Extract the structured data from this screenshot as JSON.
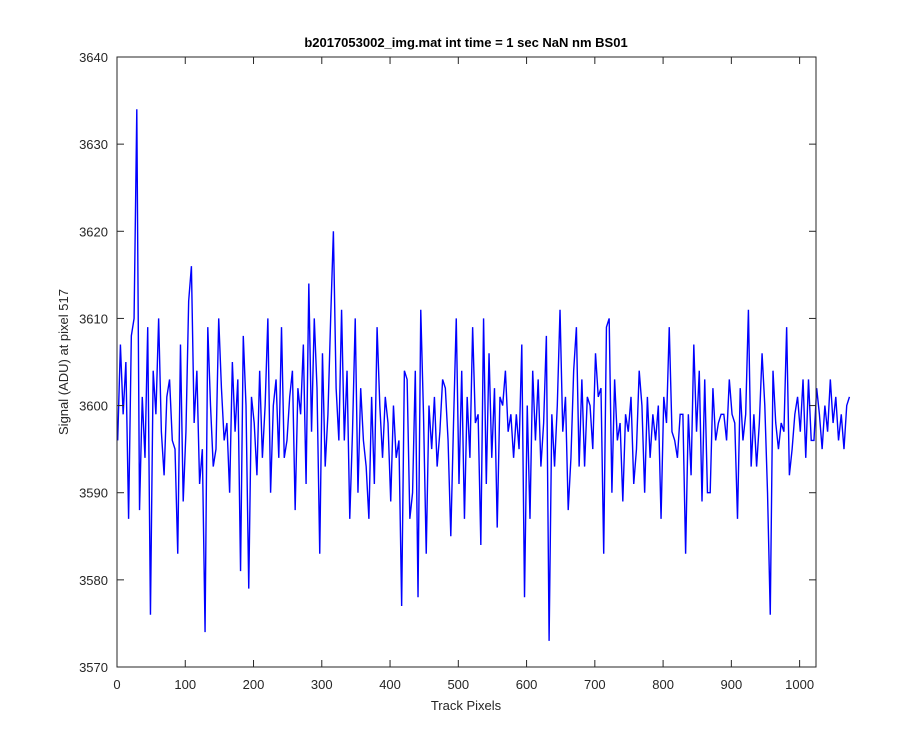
{
  "chart_data": {
    "type": "line",
    "title": "b2017053002_img.mat int time = 1 sec  NaN nm BS01",
    "xlabel": "Track Pixels",
    "ylabel": "Signal (ADU) at pixel 517",
    "xlim": [
      0,
      1024
    ],
    "ylim": [
      3570,
      3640
    ],
    "xticks": [
      0,
      100,
      200,
      300,
      400,
      500,
      600,
      700,
      800,
      900,
      1000
    ],
    "yticks": [
      3570,
      3580,
      3590,
      3600,
      3610,
      3620,
      3630,
      3640
    ],
    "grid": false,
    "line_color": "#0000ff",
    "series": [
      {
        "name": "",
        "x_start": 1,
        "x_step": 4,
        "values": [
          3596,
          3607,
          3599,
          3605,
          3587,
          3608,
          3610,
          3634,
          3588,
          3601,
          3594,
          3609,
          3576,
          3604,
          3599,
          3610,
          3597,
          3592,
          3601,
          3603,
          3596,
          3595,
          3583,
          3607,
          3589,
          3597,
          3612,
          3616,
          3598,
          3604,
          3591,
          3595,
          3574,
          3609,
          3600,
          3593,
          3595,
          3610,
          3602,
          3596,
          3598,
          3590,
          3605,
          3597,
          3603,
          3581,
          3608,
          3600,
          3579,
          3601,
          3598,
          3592,
          3604,
          3594,
          3600,
          3610,
          3590,
          3600,
          3603,
          3594,
          3609,
          3594,
          3596,
          3601,
          3604,
          3588,
          3602,
          3599,
          3607,
          3591,
          3614,
          3597,
          3610,
          3602,
          3583,
          3606,
          3593,
          3599,
          3610,
          3620,
          3602,
          3596,
          3611,
          3596,
          3604,
          3587,
          3597,
          3610,
          3590,
          3602,
          3596,
          3593,
          3587,
          3601,
          3591,
          3609,
          3600,
          3594,
          3601,
          3598,
          3589,
          3600,
          3594,
          3596,
          3577,
          3604,
          3603,
          3587,
          3590,
          3604,
          3578,
          3611,
          3599,
          3583,
          3600,
          3595,
          3601,
          3593,
          3597,
          3603,
          3602,
          3596,
          3585,
          3598,
          3610,
          3591,
          3604,
          3587,
          3601,
          3594,
          3609,
          3598,
          3599,
          3584,
          3610,
          3591,
          3606,
          3594,
          3602,
          3586,
          3601,
          3600,
          3604,
          3597,
          3599,
          3594,
          3599,
          3595,
          3607,
          3578,
          3600,
          3587,
          3604,
          3596,
          3603,
          3593,
          3598,
          3608,
          3573,
          3599,
          3593,
          3600,
          3611,
          3597,
          3601,
          3588,
          3594,
          3604,
          3609,
          3593,
          3603,
          3593,
          3601,
          3600,
          3595,
          3606,
          3601,
          3602,
          3583,
          3609,
          3610,
          3590,
          3603,
          3596,
          3598,
          3589,
          3599,
          3597,
          3601,
          3591,
          3595,
          3604,
          3600,
          3590,
          3601,
          3594,
          3599,
          3596,
          3600,
          3587,
          3601,
          3598,
          3609,
          3597,
          3596,
          3594,
          3599,
          3599,
          3583,
          3599,
          3592,
          3607,
          3597,
          3604,
          3589,
          3603,
          3590,
          3590,
          3602,
          3596,
          3598,
          3599,
          3599,
          3596,
          3603,
          3599,
          3598,
          3587,
          3602,
          3596,
          3599,
          3611,
          3593,
          3599,
          3593,
          3598,
          3606,
          3600,
          3590,
          3576,
          3604,
          3598,
          3595,
          3598,
          3597,
          3609,
          3592,
          3595,
          3599,
          3601,
          3597,
          3603,
          3594,
          3603,
          3596,
          3596,
          3602,
          3599,
          3595,
          3600,
          3597,
          3603,
          3598,
          3601,
          3596,
          3599,
          3595,
          3600,
          3601
        ]
      }
    ]
  }
}
